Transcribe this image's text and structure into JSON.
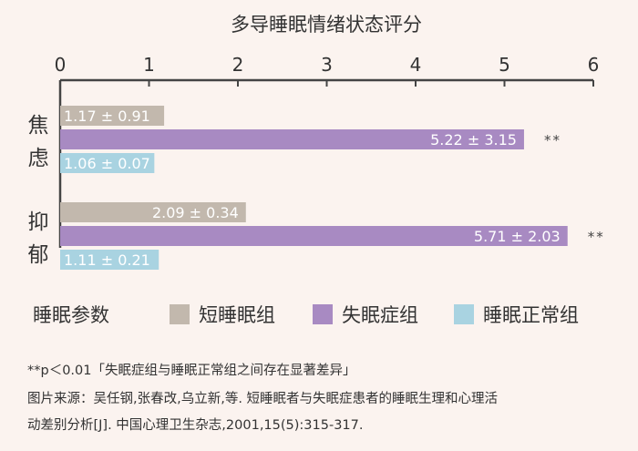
{
  "chart_data": {
    "type": "bar",
    "orientation": "horizontal",
    "title": "多导睡眠情绪状态评分",
    "categories": [
      "焦虑",
      "抑郁"
    ],
    "series": [
      {
        "name": "短睡眠组",
        "color": "#c2b8ad",
        "values": [
          1.17,
          2.09
        ],
        "labels": [
          "1.17 ± 0.91",
          "2.09 ± 0.34"
        ]
      },
      {
        "name": "失眠症组",
        "color": "#a88ac2",
        "values": [
          5.22,
          5.71
        ],
        "labels": [
          "5.22 ± 3.15",
          "5.71 ± 2.03"
        ]
      },
      {
        "name": "睡眠正常组",
        "color": "#a9d3e1",
        "values": [
          1.06,
          1.11
        ],
        "labels": [
          "1.06 ± 0.07",
          "1.11 ± 0.21"
        ]
      }
    ],
    "significance": [
      "**",
      "**"
    ],
    "xlim": [
      0,
      6
    ],
    "xticks": [
      "0",
      "1",
      "2",
      "3",
      "4",
      "5",
      "6"
    ],
    "axis_position": "top",
    "grid": false,
    "legend_title": "睡眠参数",
    "legend_position": "bottom"
  },
  "footnotes": {
    "significance_note": "**p＜0.01「失眠症组与睡眠正常组之间存在显著差异」",
    "source_line1": "图片来源：吴任钢,张春改,乌立新,等.  短睡眠者与失眠症患者的睡眠生理和心理活",
    "source_line2": "动差别分析[J]. 中国心理卫生杂志,2001,15(5):315-317."
  }
}
